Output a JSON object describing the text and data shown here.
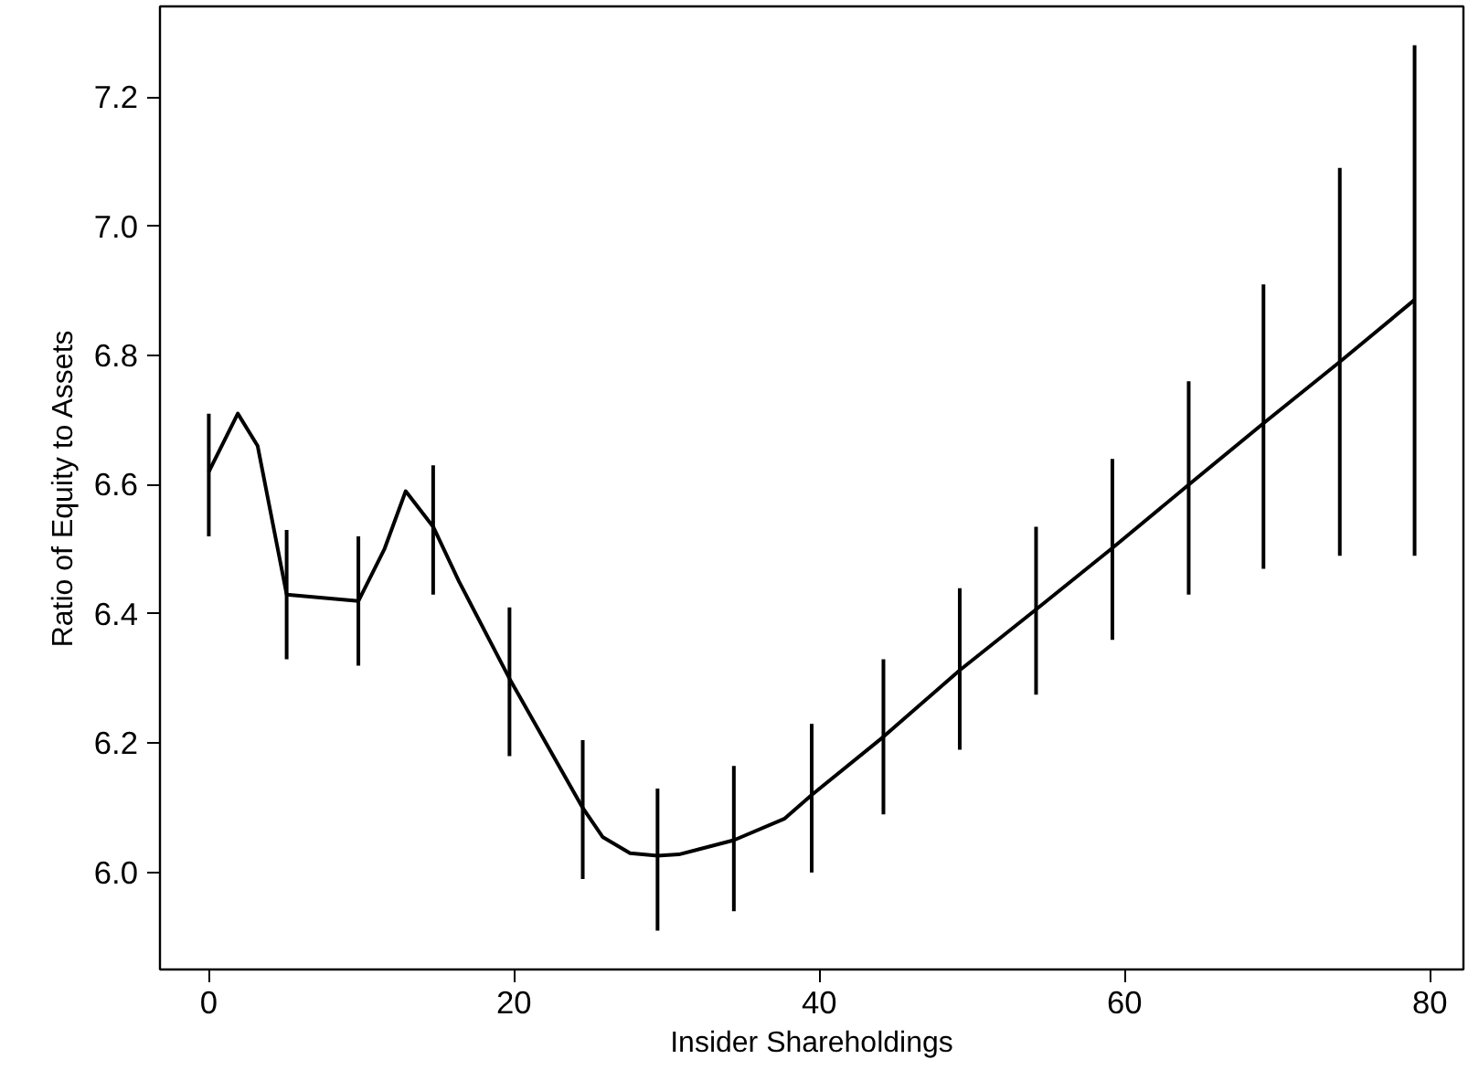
{
  "chart_data": {
    "type": "line",
    "xlabel": "Insider Shareholdings",
    "ylabel": "Ratio of Equity to Assets",
    "x": [
      0,
      1.9,
      3.2,
      5.1,
      9.8,
      11.5,
      12.9,
      14.7,
      16.4,
      19.7,
      24.5,
      25.8,
      27.6,
      29.4,
      30.8,
      34.4,
      37.7,
      39.5,
      44.2,
      49.2,
      54.2,
      59.2,
      64.2,
      69.1,
      74.1,
      79.0
    ],
    "series": [
      {
        "color": "#000000",
        "values": [
          6.62,
          6.71,
          6.66,
          6.43,
          6.42,
          6.5,
          6.59,
          6.535,
          6.45,
          6.3,
          6.1,
          6.055,
          6.03,
          6.026,
          6.028,
          6.05,
          6.083,
          6.12,
          6.21,
          6.313,
          6.407,
          6.502,
          6.6,
          6.695,
          6.79,
          6.886
        ],
        "errors": [
          [
            6.52,
            6.71
          ],
          null,
          null,
          [
            6.33,
            6.53
          ],
          [
            6.32,
            6.52
          ],
          null,
          null,
          [
            6.43,
            6.63
          ],
          null,
          [
            6.18,
            6.41
          ],
          [
            5.99,
            6.205
          ],
          null,
          null,
          [
            5.91,
            6.13
          ],
          null,
          [
            5.94,
            6.165
          ],
          null,
          [
            6.0,
            6.23
          ],
          [
            6.09,
            6.33
          ],
          [
            6.19,
            6.44
          ],
          [
            6.275,
            6.535
          ],
          [
            6.36,
            6.64
          ],
          [
            6.43,
            6.76
          ],
          [
            6.47,
            6.91
          ],
          [
            6.49,
            7.09
          ],
          [
            6.49,
            7.28
          ]
        ]
      }
    ],
    "xlim": [
      -3.2,
      82.2
    ],
    "ylim": [
      5.85,
      7.34
    ],
    "xticks": [
      0,
      20,
      40,
      60,
      80
    ],
    "yticks": [
      {
        "value": 6,
        "label": "6.0"
      },
      {
        "value": 6.2,
        "label": "6.2"
      },
      {
        "value": 6.4,
        "label": "6.4"
      },
      {
        "value": 6.6,
        "label": "6.6"
      },
      {
        "value": 6.8,
        "label": "6.8"
      },
      {
        "value": 7,
        "label": "7.0"
      },
      {
        "value": 7.2,
        "label": "7.2"
      }
    ],
    "grid": false,
    "marker": "none",
    "line_style": "solid"
  }
}
